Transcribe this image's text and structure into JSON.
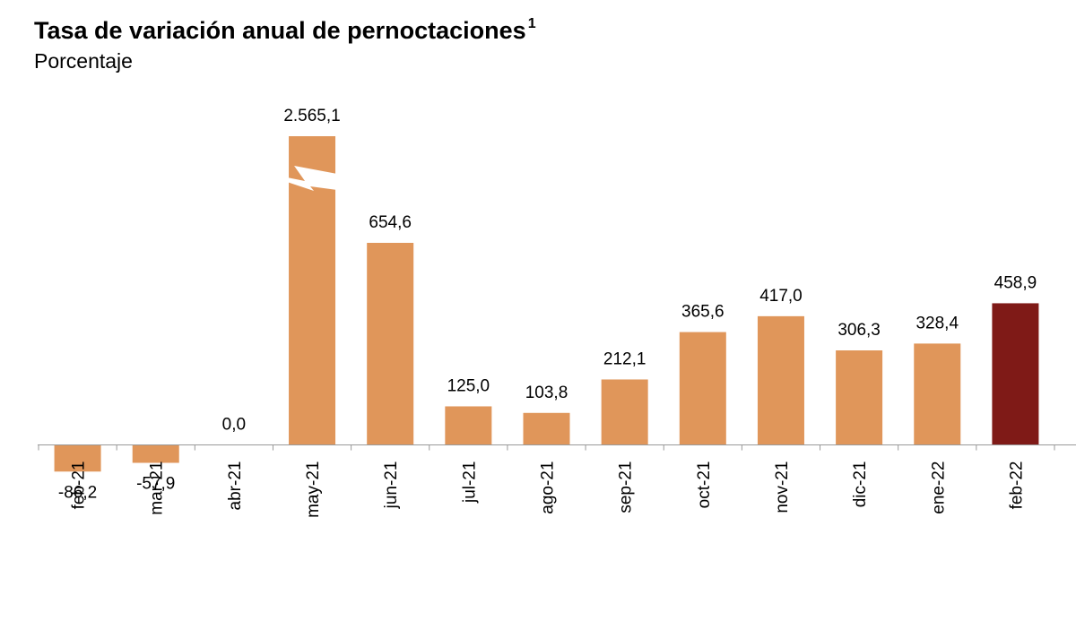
{
  "chart_data": {
    "type": "bar",
    "title": "Tasa de variación anual de pernoctaciones",
    "title_note": "1",
    "subtitle": "Porcentaje",
    "categories": [
      "feb-21",
      "mar-21",
      "abr-21",
      "may-21",
      "jun-21",
      "jul-21",
      "ago-21",
      "sep-21",
      "oct-21",
      "nov-21",
      "dic-21",
      "ene-22",
      "feb-22"
    ],
    "values": [
      -86.2,
      -57.9,
      0.0,
      2565.1,
      654.6,
      125.0,
      103.8,
      212.1,
      365.6,
      417.0,
      306.3,
      328.4,
      458.9
    ],
    "value_labels": [
      "-86,2",
      "-57,9",
      "0,0",
      "2.565,1",
      "654,6",
      "125,0",
      "103,8",
      "212,1",
      "365,6",
      "417,0",
      "306,3",
      "328,4",
      "458,9"
    ],
    "colors": [
      "#e0965a",
      "#e0965a",
      "#e0965a",
      "#e0965a",
      "#e0965a",
      "#e0965a",
      "#e0965a",
      "#e0965a",
      "#e0965a",
      "#e0965a",
      "#e0965a",
      "#e0965a",
      "#7f1a17"
    ],
    "ylim": [
      -100,
      1000
    ],
    "axis_break": true
  }
}
